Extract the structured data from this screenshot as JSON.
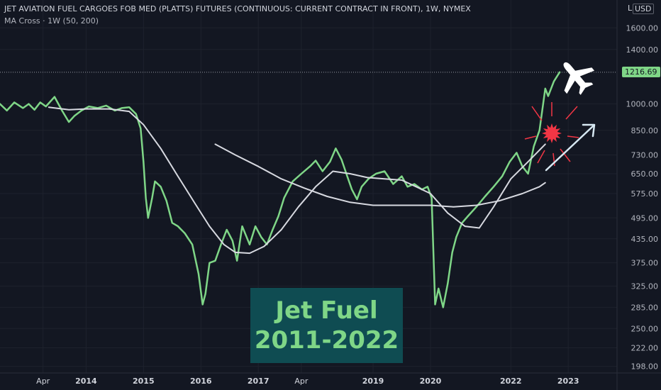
{
  "header": {
    "title": "JET AVIATION FUEL CARGOES FOB MED (PLATTS) FUTURES (CONTINUOUS: CURRENT CONTRACT IN FRONT), 1W, NYMEX",
    "indicator": "MA Cross · 1W (50, 200)"
  },
  "axis": {
    "currency": "USD",
    "log_label": "L",
    "last_price": "1216.69"
  },
  "overlay": {
    "line1": "Jet Fuel",
    "line2": "2011-2022"
  },
  "colors": {
    "background": "#131722",
    "price": "#7fd687",
    "ma": "#d7d9e0",
    "burst": "#f23645",
    "overlay_box": "#0f4c52"
  },
  "icons": [
    "airplane-icon",
    "burst-icon",
    "arrow-icon"
  ],
  "chart_data": {
    "type": "line",
    "scale": "log",
    "ylim": [
      190,
      1900
    ],
    "x_ticks": [
      "Apr",
      "2014",
      "2015",
      "2016",
      "2017",
      "Apr",
      "2019",
      "2020",
      "2022",
      "2023"
    ],
    "x_tick_pos": [
      2013.25,
      2014.0,
      2015.0,
      2016.0,
      2017.0,
      2017.75,
      2019.0,
      2020.0,
      2021.4,
      2022.4
    ],
    "xlim": [
      2012.5,
      2023.25
    ],
    "y_ticks": [
      "1600.00",
      "1400.00",
      "1000.00",
      "850.00",
      "730.00",
      "650.00",
      "575.00",
      "495.00",
      "435.00",
      "375.00",
      "325.00",
      "285.00",
      "250.00",
      "222.00",
      "198.00"
    ],
    "y_tick_values": [
      1600,
      1400,
      1000,
      850,
      730,
      650,
      575,
      495,
      435,
      375,
      325,
      285,
      250,
      222,
      198
    ],
    "series": [
      {
        "values": [
          [
            2012.5,
            1000
          ],
          [
            2012.62,
            960
          ],
          [
            2012.75,
            1010
          ],
          [
            2012.9,
            975
          ],
          [
            2013.0,
            1000
          ],
          [
            2013.1,
            965
          ],
          [
            2013.2,
            1010
          ],
          [
            2013.3,
            985
          ],
          [
            2013.45,
            1045
          ],
          [
            2013.58,
            960
          ],
          [
            2013.7,
            895
          ],
          [
            2013.8,
            930
          ],
          [
            2013.92,
            960
          ],
          [
            2014.05,
            985
          ],
          [
            2014.2,
            975
          ],
          [
            2014.35,
            990
          ],
          [
            2014.5,
            960
          ],
          [
            2014.62,
            975
          ],
          [
            2014.75,
            980
          ],
          [
            2014.87,
            940
          ],
          [
            2014.95,
            860
          ],
          [
            2015.0,
            700
          ],
          [
            2015.04,
            560
          ],
          [
            2015.08,
            495
          ],
          [
            2015.15,
            560
          ],
          [
            2015.2,
            620
          ],
          [
            2015.3,
            600
          ],
          [
            2015.4,
            550
          ],
          [
            2015.5,
            480
          ],
          [
            2015.6,
            470
          ],
          [
            2015.72,
            450
          ],
          [
            2015.85,
            420
          ],
          [
            2015.96,
            350
          ],
          [
            2016.03,
            290
          ],
          [
            2016.08,
            310
          ],
          [
            2016.15,
            375
          ],
          [
            2016.25,
            380
          ],
          [
            2016.35,
            420
          ],
          [
            2016.45,
            460
          ],
          [
            2016.55,
            430
          ],
          [
            2016.63,
            380
          ],
          [
            2016.72,
            470
          ],
          [
            2016.85,
            420
          ],
          [
            2016.95,
            470
          ],
          [
            2017.05,
            440
          ],
          [
            2017.15,
            420
          ],
          [
            2017.25,
            460
          ],
          [
            2017.35,
            500
          ],
          [
            2017.45,
            560
          ],
          [
            2017.6,
            620
          ],
          [
            2017.75,
            650
          ],
          [
            2017.9,
            680
          ],
          [
            2018.0,
            705
          ],
          [
            2018.12,
            660
          ],
          [
            2018.25,
            700
          ],
          [
            2018.35,
            760
          ],
          [
            2018.45,
            710
          ],
          [
            2018.55,
            640
          ],
          [
            2018.63,
            590
          ],
          [
            2018.72,
            555
          ],
          [
            2018.8,
            600
          ],
          [
            2018.92,
            630
          ],
          [
            2019.05,
            650
          ],
          [
            2019.2,
            660
          ],
          [
            2019.35,
            610
          ],
          [
            2019.5,
            640
          ],
          [
            2019.6,
            600
          ],
          [
            2019.72,
            610
          ],
          [
            2019.85,
            590
          ],
          [
            2019.95,
            600
          ],
          [
            2020.02,
            560
          ],
          [
            2020.08,
            290
          ],
          [
            2020.14,
            320
          ],
          [
            2020.22,
            285
          ],
          [
            2020.3,
            330
          ],
          [
            2020.38,
            400
          ],
          [
            2020.45,
            440
          ],
          [
            2020.55,
            480
          ],
          [
            2020.65,
            500
          ],
          [
            2020.8,
            530
          ],
          [
            2020.95,
            565
          ],
          [
            2021.1,
            600
          ],
          [
            2021.25,
            640
          ],
          [
            2021.38,
            700
          ],
          [
            2021.5,
            740
          ],
          [
            2021.6,
            680
          ],
          [
            2021.7,
            650
          ],
          [
            2021.8,
            770
          ],
          [
            2021.9,
            850
          ],
          [
            2022.0,
            1100
          ],
          [
            2022.05,
            1050
          ],
          [
            2022.15,
            1150
          ],
          [
            2022.25,
            1216.69
          ]
        ]
      },
      {
        "values": [
          [
            2013.35,
            980
          ],
          [
            2013.7,
            965
          ],
          [
            2014.0,
            970
          ],
          [
            2014.4,
            970
          ],
          [
            2014.75,
            955
          ],
          [
            2015.0,
            880
          ],
          [
            2015.3,
            760
          ],
          [
            2015.6,
            640
          ],
          [
            2015.9,
            540
          ],
          [
            2016.15,
            470
          ],
          [
            2016.4,
            420
          ],
          [
            2016.6,
            400
          ],
          [
            2016.85,
            398
          ],
          [
            2017.1,
            415
          ],
          [
            2017.4,
            460
          ],
          [
            2017.7,
            530
          ],
          [
            2018.0,
            600
          ],
          [
            2018.3,
            660
          ],
          [
            2018.6,
            650
          ],
          [
            2018.9,
            635
          ],
          [
            2019.2,
            630
          ],
          [
            2019.5,
            625
          ],
          [
            2019.75,
            600
          ],
          [
            2020.0,
            575
          ],
          [
            2020.3,
            510
          ],
          [
            2020.6,
            470
          ],
          [
            2020.85,
            465
          ],
          [
            2021.1,
            530
          ],
          [
            2021.4,
            630
          ],
          [
            2021.7,
            700
          ],
          [
            2022.0,
            780
          ]
        ]
      },
      {
        "values": [
          [
            2016.25,
            780
          ],
          [
            2016.6,
            730
          ],
          [
            2017.0,
            680
          ],
          [
            2017.4,
            630
          ],
          [
            2017.8,
            595
          ],
          [
            2018.2,
            565
          ],
          [
            2018.6,
            545
          ],
          [
            2019.0,
            535
          ],
          [
            2019.5,
            535
          ],
          [
            2020.0,
            535
          ],
          [
            2020.4,
            530
          ],
          [
            2020.8,
            535
          ],
          [
            2021.2,
            550
          ],
          [
            2021.6,
            575
          ],
          [
            2021.9,
            600
          ],
          [
            2022.0,
            615
          ]
        ]
      }
    ]
  }
}
